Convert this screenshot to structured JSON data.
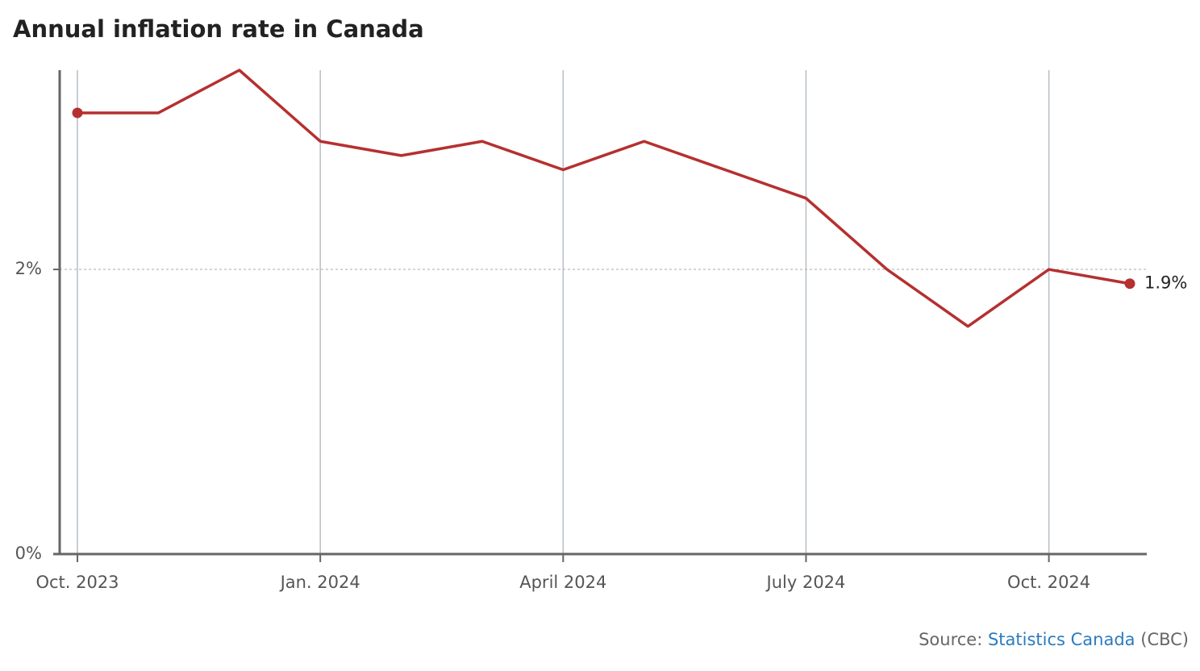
{
  "chart_data": {
    "type": "line",
    "title": "Annual inflation rate in Canada",
    "categories": [
      "Oct. 2023",
      null,
      null,
      "Jan. 2024",
      null,
      null,
      "April 2024",
      null,
      null,
      "July 2024",
      null,
      null,
      "Oct. 2024",
      null
    ],
    "series": [
      {
        "color": "#b53030",
        "values": [
          3.1,
          3.1,
          3.4,
          2.9,
          2.8,
          2.9,
          2.7,
          2.9,
          2.7,
          2.5,
          2.0,
          1.6,
          2.0,
          1.9
        ],
        "value_labels": [
          null,
          null,
          null,
          null,
          null,
          null,
          null,
          null,
          null,
          null,
          null,
          null,
          null,
          "1.9%"
        ]
      }
    ],
    "ylim": [
      0,
      3.4
    ],
    "yticks": [
      {
        "value": 0,
        "label": "0%"
      },
      {
        "value": 2,
        "label": "2%"
      }
    ],
    "grid": true,
    "source": {
      "label": "Source:",
      "name": "Statistics Canada",
      "note": "(CBC)"
    }
  }
}
